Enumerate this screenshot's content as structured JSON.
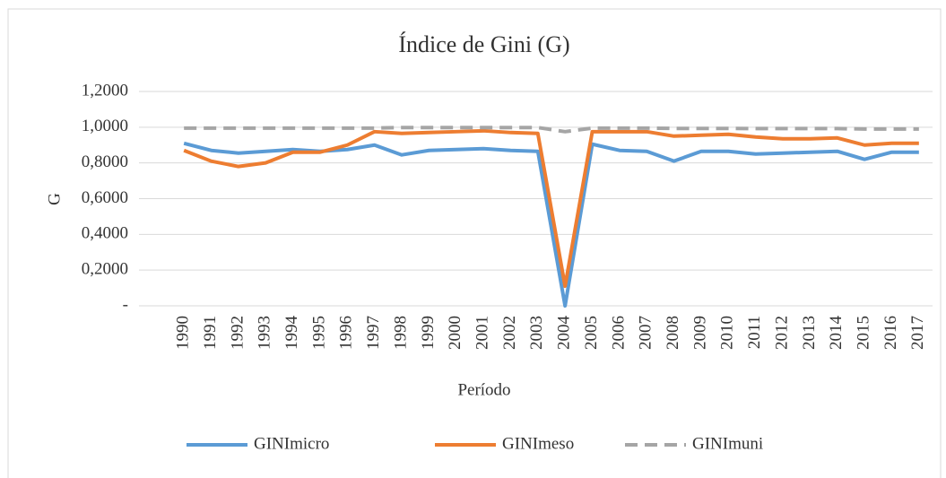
{
  "chart_data": {
    "type": "line",
    "title": "Índice de Gini (G)",
    "x_label": "Período",
    "y_label": "G",
    "categories": [
      "1990",
      "1991",
      "1992",
      "1993",
      "1994",
      "1995",
      "1996",
      "1997",
      "1998",
      "1999",
      "2000",
      "2001",
      "2002",
      "2003",
      "2004",
      "2005",
      "2006",
      "2007",
      "2008",
      "2009",
      "2010",
      "2011",
      "2012",
      "2013",
      "2014",
      "2015",
      "2016",
      "2017"
    ],
    "series": [
      {
        "name": "GINImicro",
        "color": "#5b9bd5",
        "dashed": false,
        "values": [
          0.91,
          0.87,
          0.855,
          0.865,
          0.875,
          0.865,
          0.875,
          0.9,
          0.845,
          0.87,
          0.875,
          0.88,
          0.87,
          0.865,
          0.0,
          0.905,
          0.87,
          0.865,
          0.81,
          0.865,
          0.865,
          0.85,
          0.855,
          0.86,
          0.865,
          0.82,
          0.86,
          0.86
        ]
      },
      {
        "name": "GINImeso",
        "color": "#ed7d31",
        "dashed": false,
        "values": [
          0.87,
          0.81,
          0.78,
          0.8,
          0.86,
          0.86,
          0.9,
          0.975,
          0.965,
          0.97,
          0.975,
          0.98,
          0.97,
          0.965,
          0.11,
          0.975,
          0.975,
          0.975,
          0.95,
          0.955,
          0.96,
          0.945,
          0.935,
          0.935,
          0.94,
          0.9,
          0.91,
          0.91
        ]
      },
      {
        "name": "GINImuni",
        "color": "#a5a5a5",
        "dashed": true,
        "values": [
          0.995,
          0.995,
          0.995,
          0.995,
          0.995,
          0.995,
          0.995,
          0.995,
          0.998,
          0.998,
          0.998,
          0.998,
          0.998,
          0.998,
          0.975,
          0.995,
          0.995,
          0.995,
          0.993,
          0.993,
          0.993,
          0.992,
          0.992,
          0.992,
          0.992,
          0.99,
          0.99,
          0.99
        ]
      }
    ],
    "ylim": [
      0,
      1.2
    ],
    "yticks": [
      {
        "value": 0,
        "label": "-"
      },
      {
        "value": 0.2,
        "label": "0,2000"
      },
      {
        "value": 0.4,
        "label": "0,4000"
      },
      {
        "value": 0.6,
        "label": "0,6000"
      },
      {
        "value": 0.8,
        "label": "0,8000"
      },
      {
        "value": 1.0,
        "label": "1,0000"
      },
      {
        "value": 1.2,
        "label": "1,2000"
      }
    ],
    "grid": true,
    "legend": "bottom"
  }
}
